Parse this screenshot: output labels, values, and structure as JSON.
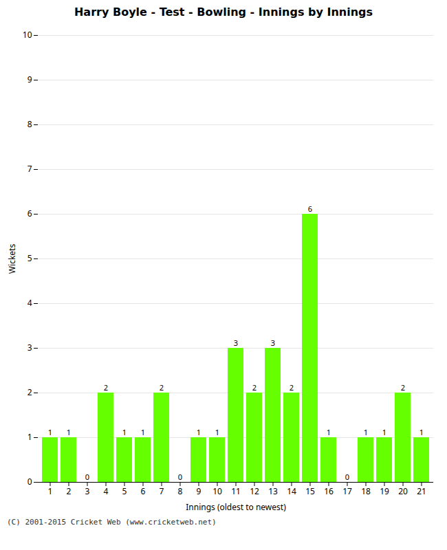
{
  "chart_data": {
    "type": "bar",
    "title": "Harry Boyle - Test - Bowling - Innings by Innings",
    "xlabel": "Innings (oldest to newest)",
    "ylabel": "Wickets",
    "categories": [
      1,
      2,
      3,
      4,
      5,
      6,
      7,
      8,
      9,
      10,
      11,
      12,
      13,
      14,
      15,
      16,
      17,
      18,
      19,
      20,
      21
    ],
    "values": [
      1,
      1,
      0,
      2,
      1,
      1,
      2,
      0,
      1,
      1,
      3,
      2,
      3,
      2,
      6,
      1,
      0,
      1,
      1,
      2,
      1
    ],
    "color": "#66ff00",
    "ylim": [
      0,
      10
    ],
    "yticks": [
      0,
      1,
      2,
      3,
      4,
      5,
      6,
      7,
      8,
      9,
      10
    ],
    "grid": true,
    "data_labels": true,
    "footer": "(C) 2001-2015 Cricket Web (www.cricketweb.net)"
  }
}
